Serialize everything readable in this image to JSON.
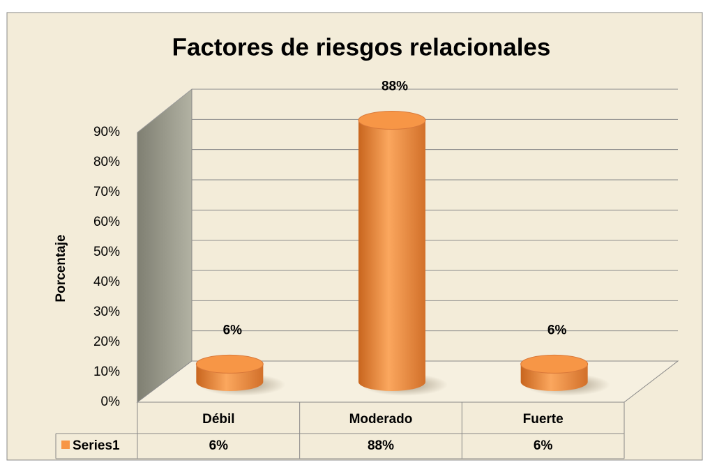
{
  "chart_data": {
    "type": "bar3d",
    "title": "Factores de riesgos relacionales",
    "y_label": "Porcentaje",
    "categories": [
      "Débil",
      "Moderado",
      "Fuerte"
    ],
    "series": [
      {
        "name": "Series1",
        "color": "#f79646",
        "values": [
          6,
          88,
          6
        ],
        "value_labels": [
          "6%",
          "88%",
          "6%"
        ]
      }
    ],
    "ylim": [
      0,
      90
    ],
    "yticks": [
      {
        "value": 0,
        "label": "0%"
      },
      {
        "value": 10,
        "label": "10%"
      },
      {
        "value": 20,
        "label": "20%"
      },
      {
        "value": 30,
        "label": "30%"
      },
      {
        "value": 40,
        "label": "40%"
      },
      {
        "value": 50,
        "label": "50%"
      },
      {
        "value": 60,
        "label": "60%"
      },
      {
        "value": 70,
        "label": "70%"
      },
      {
        "value": 80,
        "label": "80%"
      },
      {
        "value": 90,
        "label": "90%"
      }
    ],
    "grid": true,
    "data_table": true
  }
}
